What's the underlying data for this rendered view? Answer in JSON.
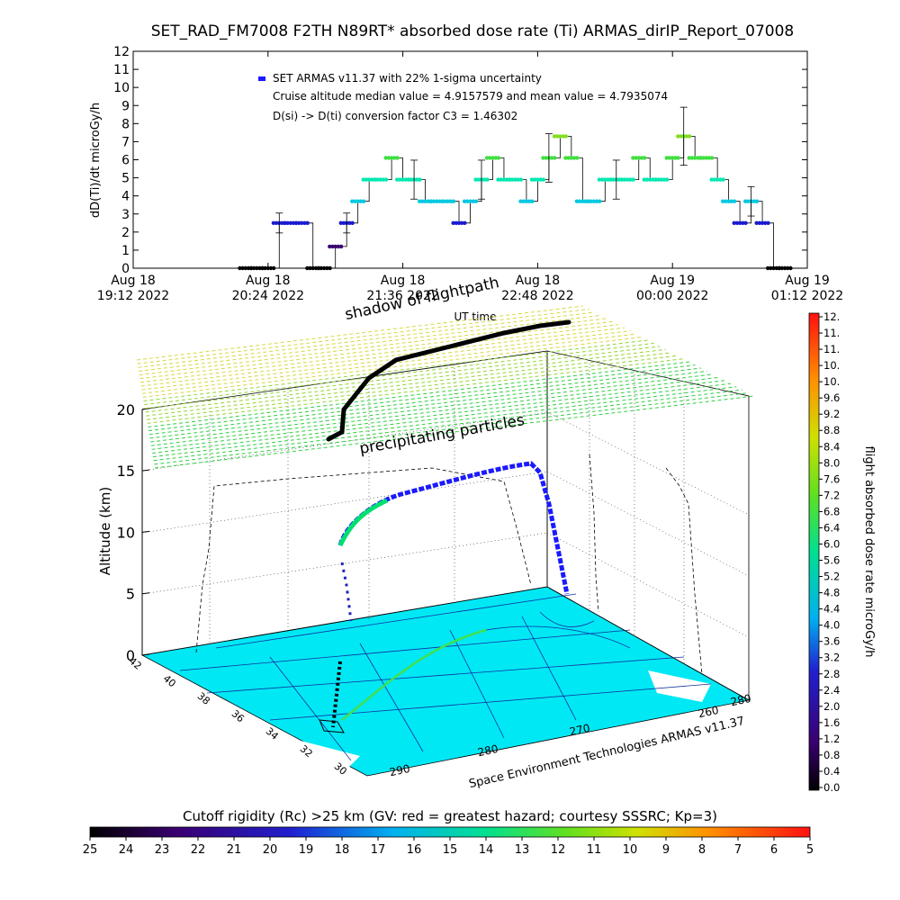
{
  "chart_data": [
    {
      "type": "scatter",
      "title": "SET_RAD_FM7008  F2TH N89RT* absorbed dose rate (Ti) ARMAS_dirIP_Report_07008",
      "ylabel": "dD(Ti)/dt microGy/h",
      "xlabel": "UT time",
      "ylim": [
        0,
        12
      ],
      "y_ticks": [
        "0",
        "1",
        "2",
        "3",
        "4",
        "5",
        "6",
        "7",
        "8",
        "9",
        "10",
        "11",
        "12"
      ],
      "x_tick_labels": [
        {
          "date": "Aug 18",
          "time": "19:12 2022"
        },
        {
          "date": "Aug 18",
          "time": "20:24 2022"
        },
        {
          "date": "Aug 18",
          "time": "21:36 2022"
        },
        {
          "date": "Aug 18",
          "time": "22:48 2022"
        },
        {
          "date": "Aug 19",
          "time": "00:00 2022"
        },
        {
          "date": "Aug 19",
          "time": "01:12 2022"
        }
      ],
      "xlim_hours": [
        19.2,
        25.2
      ],
      "legend": {
        "series": "SET ARMAS v11.37 with 22% 1-sigma uncertainty",
        "note1": "Cruise altitude median value = 4.9157579 and mean value = 4.7935074",
        "note2": "D(si) -> D(ti) conversion factor C3 = 1.46302"
      },
      "series": [
        {
          "x_hours": [
            20.2,
            20.3,
            20.4,
            20.5,
            20.6,
            20.7,
            20.8,
            20.9,
            21.0,
            21.1,
            21.2,
            21.3,
            21.4,
            21.5,
            21.6,
            21.7,
            21.8,
            21.9,
            22.0,
            22.1,
            22.2,
            22.3,
            22.4,
            22.5,
            22.6,
            22.7,
            22.8,
            22.9,
            23.0,
            23.1,
            23.2,
            23.3,
            23.4,
            23.5,
            23.6,
            23.7,
            23.8,
            23.9,
            24.0,
            24.1,
            24.2,
            24.3,
            24.4,
            24.5,
            24.6,
            24.7,
            24.8,
            24.9,
            25.0
          ],
          "values": [
            0,
            0,
            0,
            2.5,
            2.5,
            2.5,
            0,
            0,
            1.2,
            2.5,
            3.7,
            4.9,
            4.9,
            6.1,
            4.9,
            4.9,
            3.7,
            3.7,
            3.7,
            2.5,
            3.7,
            4.9,
            6.1,
            4.9,
            4.9,
            3.7,
            4.9,
            6.1,
            7.3,
            6.1,
            3.7,
            3.7,
            4.9,
            4.9,
            4.9,
            6.1,
            4.9,
            4.9,
            6.1,
            7.3,
            6.1,
            6.1,
            4.9,
            3.7,
            2.5,
            3.7,
            2.5,
            0,
            0
          ]
        }
      ]
    },
    {
      "type": "scatter",
      "ylabel": "Altitude (km)",
      "z_ticks": [
        "0",
        "5",
        "10",
        "15",
        "20"
      ],
      "lat_ticks": [
        "42",
        "40",
        "38",
        "36",
        "34",
        "32",
        "30"
      ],
      "lon_ticks_front": [
        "290",
        "280",
        "270"
      ],
      "lon_ticks_right": [
        "260",
        "280"
      ],
      "annotations": {
        "shadow": "shadow of flightpath",
        "precip": "precipitating particles",
        "credit": "Space Environment Technologies ARMAS v11.37"
      },
      "colorbar": {
        "label": "flight absorbed dose rate microGy/h",
        "ticks": [
          "0.0",
          "0.4",
          "0.8",
          "1.2",
          "1.6",
          "2.0",
          "2.4",
          "2.8",
          "3.2",
          "3.6",
          "4.0",
          "4.4",
          "4.8",
          "5.2",
          "5.6",
          "6.0",
          "6.4",
          "6.8",
          "7.2",
          "7.6",
          "8.0",
          "8.4",
          "8.8",
          "9.2",
          "9.6",
          "10.",
          "10.",
          "11.",
          "11.",
          "12."
        ]
      }
    },
    {
      "type": "heatmap",
      "title": "Cutoff rigidity (Rc) >25 km (GV: red = greatest hazard; courtesy SSSRC; Kp=3)",
      "ticks": [
        "25",
        "24",
        "23",
        "22",
        "21",
        "20",
        "19",
        "18",
        "17",
        "16",
        "15",
        "14",
        "13",
        "12",
        "11",
        "10",
        "9",
        "8",
        "7",
        "6",
        "5"
      ]
    }
  ]
}
